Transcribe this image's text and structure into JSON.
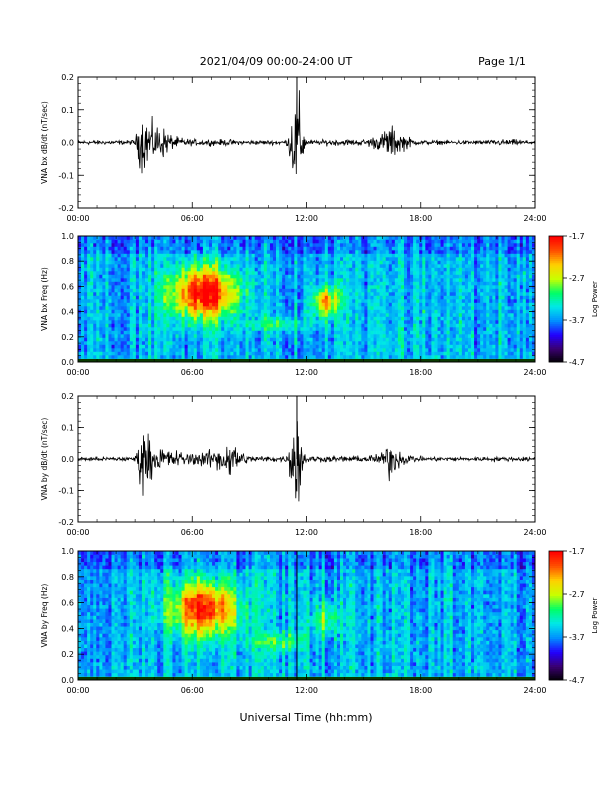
{
  "header": {
    "title": "2021/04/09   00:00-24:00  UT",
    "page": "Page 1/1"
  },
  "xaxis_label": "Universal Time (hh:mm)",
  "colorbar": {
    "label": "Log Power",
    "ticks": [
      "-1.7",
      "-2.7",
      "-3.7",
      "-4.7"
    ],
    "range": [
      -4.7,
      -1.7
    ],
    "colormap": [
      "#000000",
      "#3a0070",
      "#2200ff",
      "#0090ff",
      "#00e8e8",
      "#00ff66",
      "#c8ff00",
      "#ffd000",
      "#ff5000",
      "#ff0000"
    ]
  },
  "chart_data": [
    {
      "type": "line",
      "ylabel": "VNA bx dB/dt (nT/sec)",
      "xlim": [
        "00:00",
        "24:00"
      ],
      "ylim": [
        -0.2,
        0.2
      ],
      "xticks": [
        "00:00",
        "06:00",
        "12:00",
        "18:00",
        "24:00"
      ],
      "yticks": [
        "0.2",
        "0.1",
        "0.0",
        "-0.1",
        "-0.2"
      ],
      "series": [
        {
          "x": [
            0,
            1,
            2,
            3,
            3.3,
            3.5,
            4,
            4.5,
            5,
            6,
            7,
            8,
            9,
            10,
            11,
            11.5,
            12,
            13,
            14,
            15,
            16,
            16.3,
            17,
            18,
            19,
            20,
            21,
            22,
            23,
            24
          ],
          "y": [
            0,
            0,
            0,
            0.01,
            0.09,
            -0.09,
            0.06,
            -0.05,
            0.02,
            0.01,
            0.01,
            0.01,
            0,
            0,
            0.01,
            0.2,
            0,
            0.01,
            0.01,
            0.01,
            0.03,
            -0.06,
            0.03,
            0,
            0,
            0,
            0,
            0.01,
            0.01,
            0
          ]
        }
      ]
    },
    {
      "type": "heatmap",
      "ylabel": "VNA bx Freq (Hz)",
      "xlim": [
        "00:00",
        "24:00"
      ],
      "ylim": [
        0,
        1
      ],
      "xticks": [
        "00:00",
        "06:00",
        "12:00",
        "18:00",
        "24:00"
      ],
      "yticks": [
        "1.0",
        "0.8",
        "0.6",
        "0.4",
        "0.2",
        "0.0"
      ]
    },
    {
      "type": "line",
      "ylabel": "VNA by dB/dt (nT/sec)",
      "xlim": [
        "00:00",
        "24:00"
      ],
      "ylim": [
        -0.2,
        0.2
      ],
      "xticks": [
        "00:00",
        "06:00",
        "12:00",
        "18:00",
        "24:00"
      ],
      "yticks": [
        "0.2",
        "0.1",
        "0.0",
        "-0.1",
        "-0.2"
      ],
      "series": [
        {
          "x": [
            0,
            1,
            2,
            3,
            3.3,
            3.5,
            4,
            4.5,
            5,
            6,
            7,
            7.5,
            8,
            9,
            10,
            11,
            11.5,
            12,
            13,
            14,
            15,
            16,
            16.3,
            17,
            18,
            19,
            20,
            21,
            22,
            23,
            24
          ],
          "y": [
            0,
            0,
            0,
            0.01,
            0.1,
            -0.1,
            0.04,
            -0.04,
            0.03,
            0.02,
            0.03,
            0.05,
            -0.06,
            0.01,
            0.01,
            0.01,
            0.2,
            0.01,
            0.01,
            0.01,
            0.01,
            0.02,
            -0.07,
            0.02,
            0.01,
            0,
            0,
            0,
            0.01,
            0,
            0
          ]
        }
      ]
    },
    {
      "type": "heatmap",
      "ylabel": "VNA by Freq (Hz)",
      "xlim": [
        "00:00",
        "24:00"
      ],
      "ylim": [
        0,
        1
      ],
      "xticks": [
        "00:00",
        "06:00",
        "12:00",
        "18:00",
        "24:00"
      ],
      "yticks": [
        "1.0",
        "0.8",
        "0.6",
        "0.4",
        "0.2",
        "0.0"
      ]
    }
  ]
}
